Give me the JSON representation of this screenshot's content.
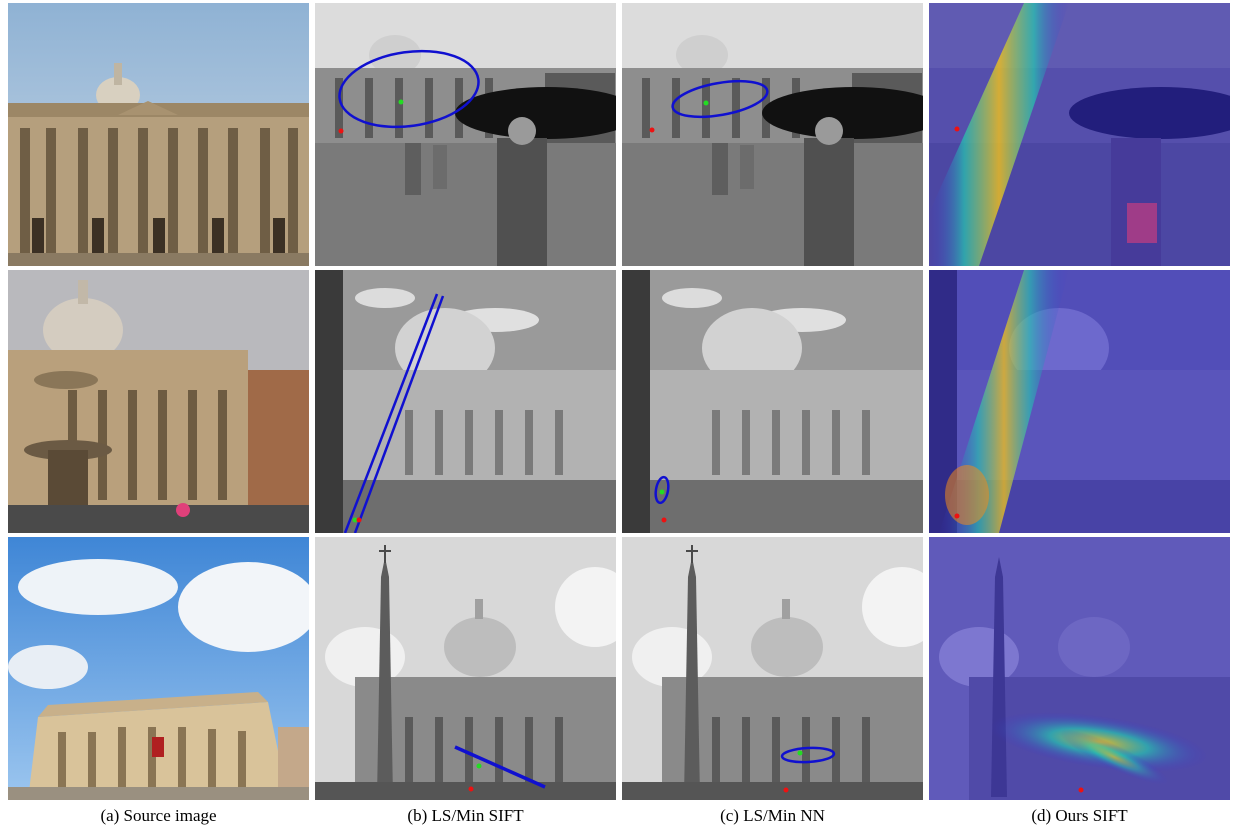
{
  "figure": {
    "captions": [
      "(a) Source image",
      "(b) LS/Min SIFT",
      "(c) LS/Min NN",
      "(d) Ours SIFT"
    ],
    "rows": [
      {
        "scene": "basilica-facade-with-umbrella-woman"
      },
      {
        "scene": "basilica-dome-with-fountain"
      },
      {
        "scene": "basilica-with-obelisk"
      }
    ],
    "colors": {
      "ellipse": "#1010d0",
      "point_green": "#22dd22",
      "point_red": "#ee1111",
      "overlay_blue": "#3b2fd0"
    }
  }
}
